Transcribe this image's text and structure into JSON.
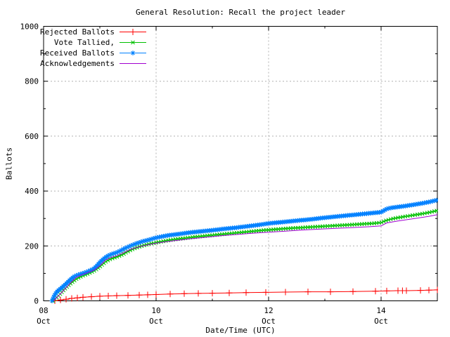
{
  "chart_data": {
    "type": "line",
    "title": "General Resolution: Recall the project leader",
    "xlabel": "Date/Time (UTC)",
    "ylabel": "Ballots",
    "ylim": [
      0,
      1000
    ],
    "x_range_days": [
      0,
      7
    ],
    "x_unit": "days since 08 Oct 00:00 (UTC)",
    "grid": true,
    "grid_color": "#b0b0b0",
    "border_color": "#000000",
    "legend_position": "top-left",
    "y_ticks": [
      0,
      200,
      400,
      600,
      800,
      1000
    ],
    "y_minor_ticks": [
      100,
      300,
      500,
      700,
      900
    ],
    "x_ticks": [
      {
        "day": 0,
        "line1": "08",
        "line2": "Oct"
      },
      {
        "day": 2,
        "line1": "10",
        "line2": "Oct"
      },
      {
        "day": 4,
        "line1": "12",
        "line2": "Oct"
      },
      {
        "day": 6,
        "line1": "14",
        "line2": "Oct"
      }
    ],
    "x_minor_tick_days": [
      1,
      3,
      5,
      7
    ],
    "series": [
      {
        "name": "Rejected Ballots",
        "color": "#ff0000",
        "marker": "plus",
        "points": [
          [
            0.2,
            0
          ],
          [
            0.3,
            3
          ],
          [
            0.4,
            6
          ],
          [
            0.5,
            9
          ],
          [
            0.6,
            11
          ],
          [
            0.7,
            13
          ],
          [
            0.85,
            15
          ],
          [
            1.0,
            17
          ],
          [
            1.15,
            18
          ],
          [
            1.3,
            19
          ],
          [
            1.5,
            20
          ],
          [
            1.7,
            21
          ],
          [
            1.85,
            22
          ],
          [
            2.0,
            23
          ],
          [
            2.25,
            25
          ],
          [
            2.5,
            26
          ],
          [
            2.75,
            27
          ],
          [
            3.0,
            28
          ],
          [
            3.3,
            29
          ],
          [
            3.6,
            30
          ],
          [
            3.95,
            31
          ],
          [
            4.3,
            32
          ],
          [
            4.7,
            33
          ],
          [
            5.1,
            33
          ],
          [
            5.5,
            34
          ],
          [
            5.9,
            35
          ],
          [
            6.1,
            36
          ],
          [
            6.3,
            37
          ],
          [
            6.38,
            37
          ],
          [
            6.45,
            37
          ],
          [
            6.7,
            38
          ],
          [
            6.85,
            39
          ],
          [
            7.0,
            40
          ]
        ]
      },
      {
        "name": "Vote Tallied,",
        "color": "#00c000",
        "marker": "cross",
        "marker_step_px": 3.5,
        "points": [
          [
            0.17,
            0
          ],
          [
            0.21,
            8
          ],
          [
            0.26,
            18
          ],
          [
            0.31,
            28
          ],
          [
            0.36,
            40
          ],
          [
            0.42,
            52
          ],
          [
            0.48,
            63
          ],
          [
            0.54,
            73
          ],
          [
            0.6,
            82
          ],
          [
            0.68,
            90
          ],
          [
            0.78,
            98
          ],
          [
            0.88,
            107
          ],
          [
            0.95,
            116
          ],
          [
            1.0,
            124
          ],
          [
            1.06,
            135
          ],
          [
            1.12,
            145
          ],
          [
            1.2,
            153
          ],
          [
            1.3,
            160
          ],
          [
            1.4,
            168
          ],
          [
            1.5,
            180
          ],
          [
            1.6,
            190
          ],
          [
            1.7,
            197
          ],
          [
            1.8,
            203
          ],
          [
            1.9,
            208
          ],
          [
            2.0,
            212
          ],
          [
            2.15,
            218
          ],
          [
            2.3,
            223
          ],
          [
            2.5,
            228
          ],
          [
            2.7,
            233
          ],
          [
            2.9,
            237
          ],
          [
            3.1,
            241
          ],
          [
            3.3,
            245
          ],
          [
            3.5,
            249
          ],
          [
            3.7,
            253
          ],
          [
            3.9,
            257
          ],
          [
            4.1,
            260
          ],
          [
            4.35,
            264
          ],
          [
            4.6,
            267
          ],
          [
            4.85,
            270
          ],
          [
            5.1,
            273
          ],
          [
            5.35,
            276
          ],
          [
            5.6,
            279
          ],
          [
            5.85,
            282
          ],
          [
            6.0,
            285
          ],
          [
            6.08,
            292
          ],
          [
            6.18,
            298
          ],
          [
            6.3,
            303
          ],
          [
            6.45,
            308
          ],
          [
            6.6,
            313
          ],
          [
            6.75,
            318
          ],
          [
            6.88,
            323
          ],
          [
            7.0,
            329
          ]
        ]
      },
      {
        "name": "Received Ballots",
        "color": "#0080ff",
        "marker": "star",
        "marker_step_px": 3,
        "points": [
          [
            0.15,
            0
          ],
          [
            0.18,
            14
          ],
          [
            0.21,
            26
          ],
          [
            0.25,
            36
          ],
          [
            0.3,
            44
          ],
          [
            0.35,
            53
          ],
          [
            0.4,
            62
          ],
          [
            0.45,
            72
          ],
          [
            0.5,
            82
          ],
          [
            0.55,
            89
          ],
          [
            0.6,
            94
          ],
          [
            0.68,
            99
          ],
          [
            0.75,
            104
          ],
          [
            0.82,
            110
          ],
          [
            0.9,
            118
          ],
          [
            0.95,
            128
          ],
          [
            1.0,
            140
          ],
          [
            1.05,
            150
          ],
          [
            1.1,
            158
          ],
          [
            1.15,
            165
          ],
          [
            1.22,
            171
          ],
          [
            1.3,
            176
          ],
          [
            1.38,
            184
          ],
          [
            1.45,
            192
          ],
          [
            1.55,
            201
          ],
          [
            1.65,
            209
          ],
          [
            1.75,
            216
          ],
          [
            1.85,
            221
          ],
          [
            1.95,
            227
          ],
          [
            2.0,
            230
          ],
          [
            2.1,
            234
          ],
          [
            2.2,
            238
          ],
          [
            2.35,
            242
          ],
          [
            2.5,
            246
          ],
          [
            2.65,
            250
          ],
          [
            2.8,
            253
          ],
          [
            3.0,
            257
          ],
          [
            3.2,
            262
          ],
          [
            3.4,
            266
          ],
          [
            3.6,
            271
          ],
          [
            3.8,
            276
          ],
          [
            4.0,
            282
          ],
          [
            4.2,
            286
          ],
          [
            4.4,
            290
          ],
          [
            4.6,
            294
          ],
          [
            4.8,
            298
          ],
          [
            5.0,
            303
          ],
          [
            5.2,
            307
          ],
          [
            5.4,
            311
          ],
          [
            5.6,
            315
          ],
          [
            5.8,
            319
          ],
          [
            6.0,
            323
          ],
          [
            6.05,
            329
          ],
          [
            6.1,
            335
          ],
          [
            6.18,
            339
          ],
          [
            6.3,
            342
          ],
          [
            6.45,
            346
          ],
          [
            6.6,
            351
          ],
          [
            6.75,
            356
          ],
          [
            6.85,
            360
          ],
          [
            6.93,
            364
          ],
          [
            7.0,
            367
          ]
        ]
      },
      {
        "name": "Acknowledgements",
        "color": "#a000d0",
        "marker": "none",
        "points": [
          [
            0.18,
            0
          ],
          [
            0.25,
            15
          ],
          [
            0.33,
            32
          ],
          [
            0.42,
            52
          ],
          [
            0.5,
            70
          ],
          [
            0.58,
            85
          ],
          [
            0.68,
            95
          ],
          [
            0.8,
            104
          ],
          [
            0.9,
            112
          ],
          [
            1.0,
            128
          ],
          [
            1.1,
            148
          ],
          [
            1.2,
            158
          ],
          [
            1.3,
            164
          ],
          [
            1.42,
            175
          ],
          [
            1.55,
            188
          ],
          [
            1.7,
            197
          ],
          [
            1.85,
            204
          ],
          [
            2.0,
            210
          ],
          [
            2.2,
            216
          ],
          [
            2.4,
            221
          ],
          [
            2.6,
            226
          ],
          [
            2.8,
            230
          ],
          [
            3.0,
            234
          ],
          [
            3.2,
            238
          ],
          [
            3.45,
            242
          ],
          [
            3.7,
            246
          ],
          [
            4.0,
            250
          ],
          [
            4.3,
            254
          ],
          [
            4.6,
            258
          ],
          [
            4.9,
            261
          ],
          [
            5.2,
            264
          ],
          [
            5.5,
            267
          ],
          [
            5.8,
            270
          ],
          [
            6.0,
            273
          ],
          [
            6.1,
            284
          ],
          [
            6.3,
            291
          ],
          [
            6.5,
            297
          ],
          [
            6.7,
            303
          ],
          [
            6.85,
            308
          ],
          [
            7.0,
            314
          ]
        ]
      }
    ]
  }
}
